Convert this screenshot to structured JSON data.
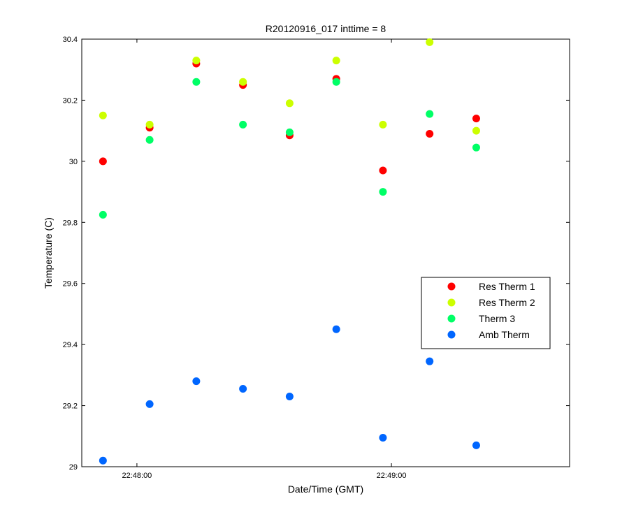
{
  "chart_data": {
    "type": "scatter",
    "title": "R20120916_017 inttime = 8",
    "xlabel": "Date/Time (GMT)",
    "ylabel": "Temperature (C)",
    "x_unit": "time",
    "xlim": [
      "22:47:47",
      "22:49:42"
    ],
    "ylim": [
      29,
      30.4
    ],
    "xticks": [
      {
        "value": "22:48:00",
        "label": "22:48:00"
      },
      {
        "value": "22:49:00",
        "label": "22:49:00"
      }
    ],
    "yticks": [
      29,
      29.2,
      29.4,
      29.6,
      29.8,
      30,
      30.2,
      30.4
    ],
    "ytick_labels": [
      "29",
      "29.2",
      "29.4",
      "29.6",
      "29.8",
      "30",
      "30.2",
      "30.4"
    ],
    "x": [
      "22:47:52",
      "22:48:03",
      "22:48:14",
      "22:48:25",
      "22:48:36",
      "22:48:47",
      "22:48:58",
      "22:49:09",
      "22:49:20"
    ],
    "series": [
      {
        "name": "Res Therm 1",
        "color": "#ff0000",
        "values": [
          30.0,
          30.11,
          30.32,
          30.25,
          30.085,
          30.27,
          29.97,
          30.09,
          30.14
        ]
      },
      {
        "name": "Res Therm 2",
        "color": "#ccff00",
        "values": [
          30.15,
          30.12,
          30.33,
          30.26,
          30.19,
          30.33,
          30.12,
          30.39,
          30.1
        ]
      },
      {
        "name": "Therm 3",
        "color": "#00ff66",
        "values": [
          29.825,
          30.07,
          30.26,
          30.12,
          30.095,
          30.26,
          29.9,
          30.155,
          30.045
        ]
      },
      {
        "name": "Amb Therm",
        "color": "#0066ff",
        "values": [
          29.02,
          29.205,
          29.28,
          29.255,
          29.23,
          29.45,
          29.095,
          29.345,
          29.07
        ]
      }
    ],
    "grid": false,
    "legend_position": "right-middle"
  }
}
